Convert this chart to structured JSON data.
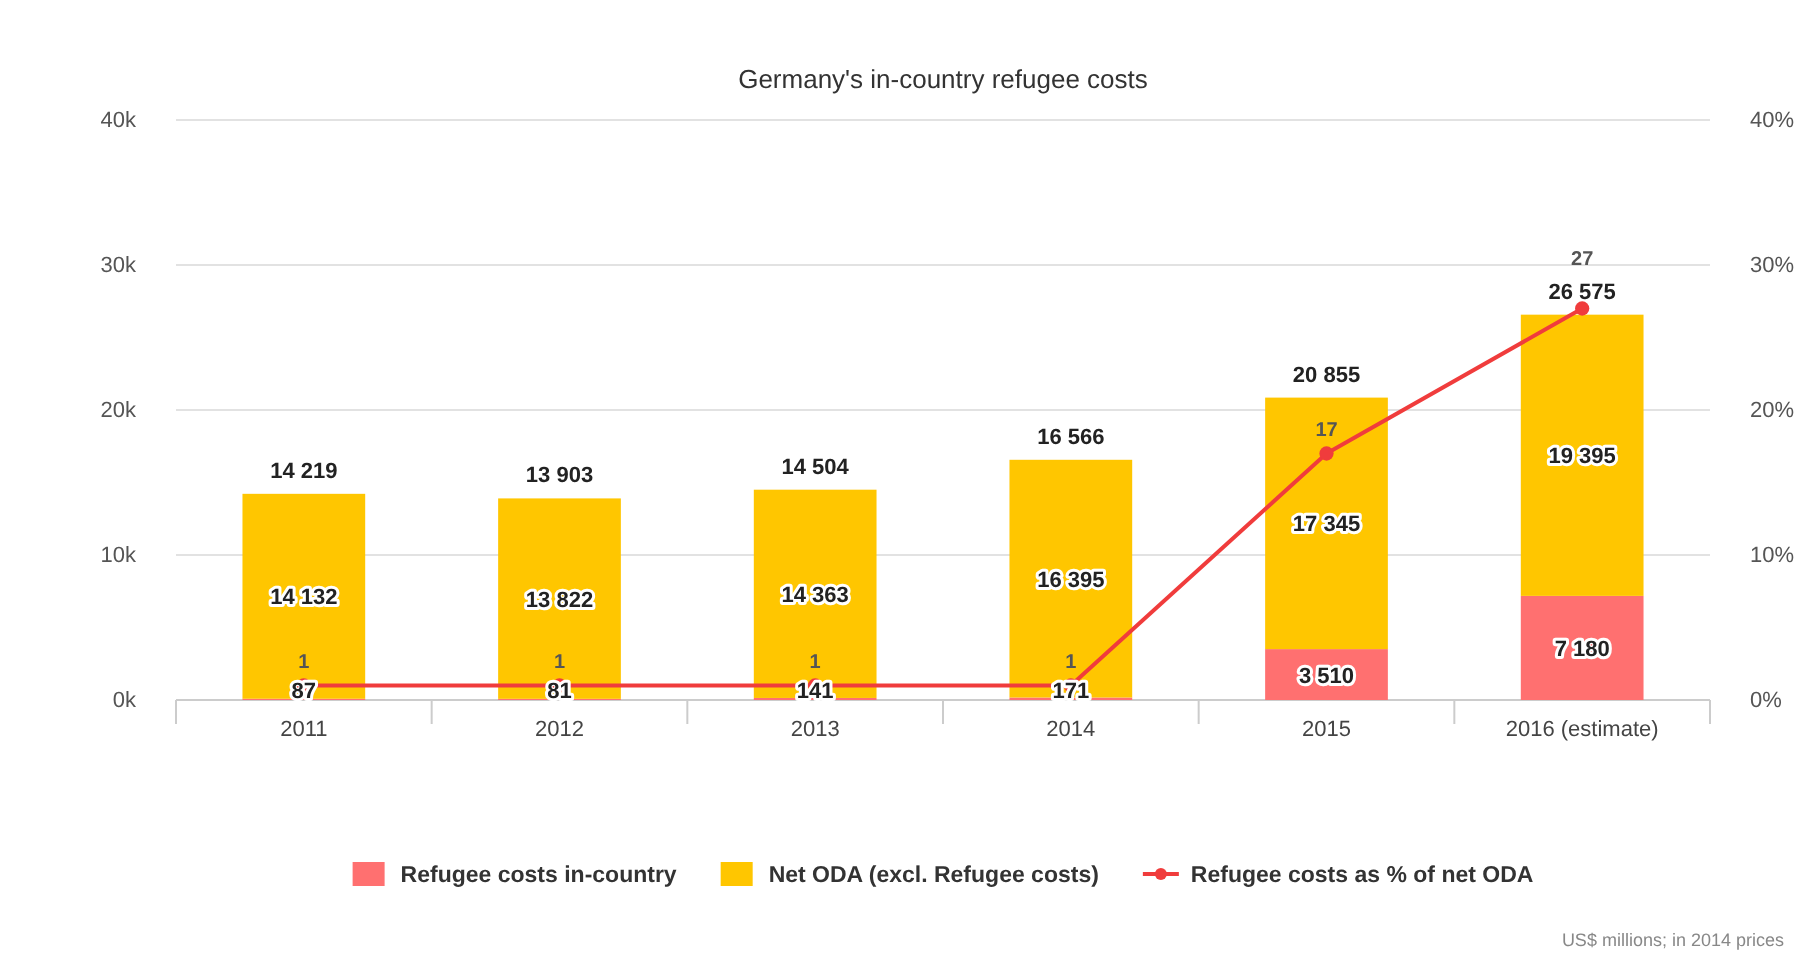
{
  "chart_data": {
    "type": "bar",
    "title": "Germany's in-country refugee costs",
    "categories": [
      "2011",
      "2012",
      "2013",
      "2014",
      "2015",
      "2016 (estimate)"
    ],
    "stacked": true,
    "series": [
      {
        "name": "Refugee costs in-country",
        "color": "#ff7070",
        "values": [
          87,
          81,
          141,
          171,
          3510,
          7180
        ]
      },
      {
        "name": "Net ODA (excl. Refugee costs)",
        "color": "#ffc600",
        "values": [
          14132,
          13822,
          14363,
          16395,
          17345,
          19395
        ]
      },
      {
        "name": "Refugee costs as % of net ODA",
        "type": "line",
        "axis": "y2",
        "color": "#f03c3c",
        "marker": "circle",
        "values": [
          1,
          1,
          1,
          1,
          17,
          27
        ]
      }
    ],
    "totals": [
      "14 219",
      "13 903",
      "14 504",
      "16 566",
      "20 855",
      "26 575"
    ],
    "data_labels": true,
    "ylim": [
      0,
      40000
    ],
    "yticks": [
      {
        "value": 0,
        "label": "0k"
      },
      {
        "value": 10000,
        "label": "10k"
      },
      {
        "value": 20000,
        "label": "20k"
      },
      {
        "value": 30000,
        "label": "30k"
      },
      {
        "value": 40000,
        "label": "40k"
      }
    ],
    "y2lim": [
      0,
      40
    ],
    "y2ticks": [
      {
        "value": 0,
        "label": "0%"
      },
      {
        "value": 10,
        "label": "10%"
      },
      {
        "value": 20,
        "label": "20%"
      },
      {
        "value": 30,
        "label": "30%"
      },
      {
        "value": 40,
        "label": "40%"
      }
    ],
    "grid": "y",
    "legend": "bottom",
    "annotations": [
      "US$ millions; in 2014 prices"
    ]
  }
}
